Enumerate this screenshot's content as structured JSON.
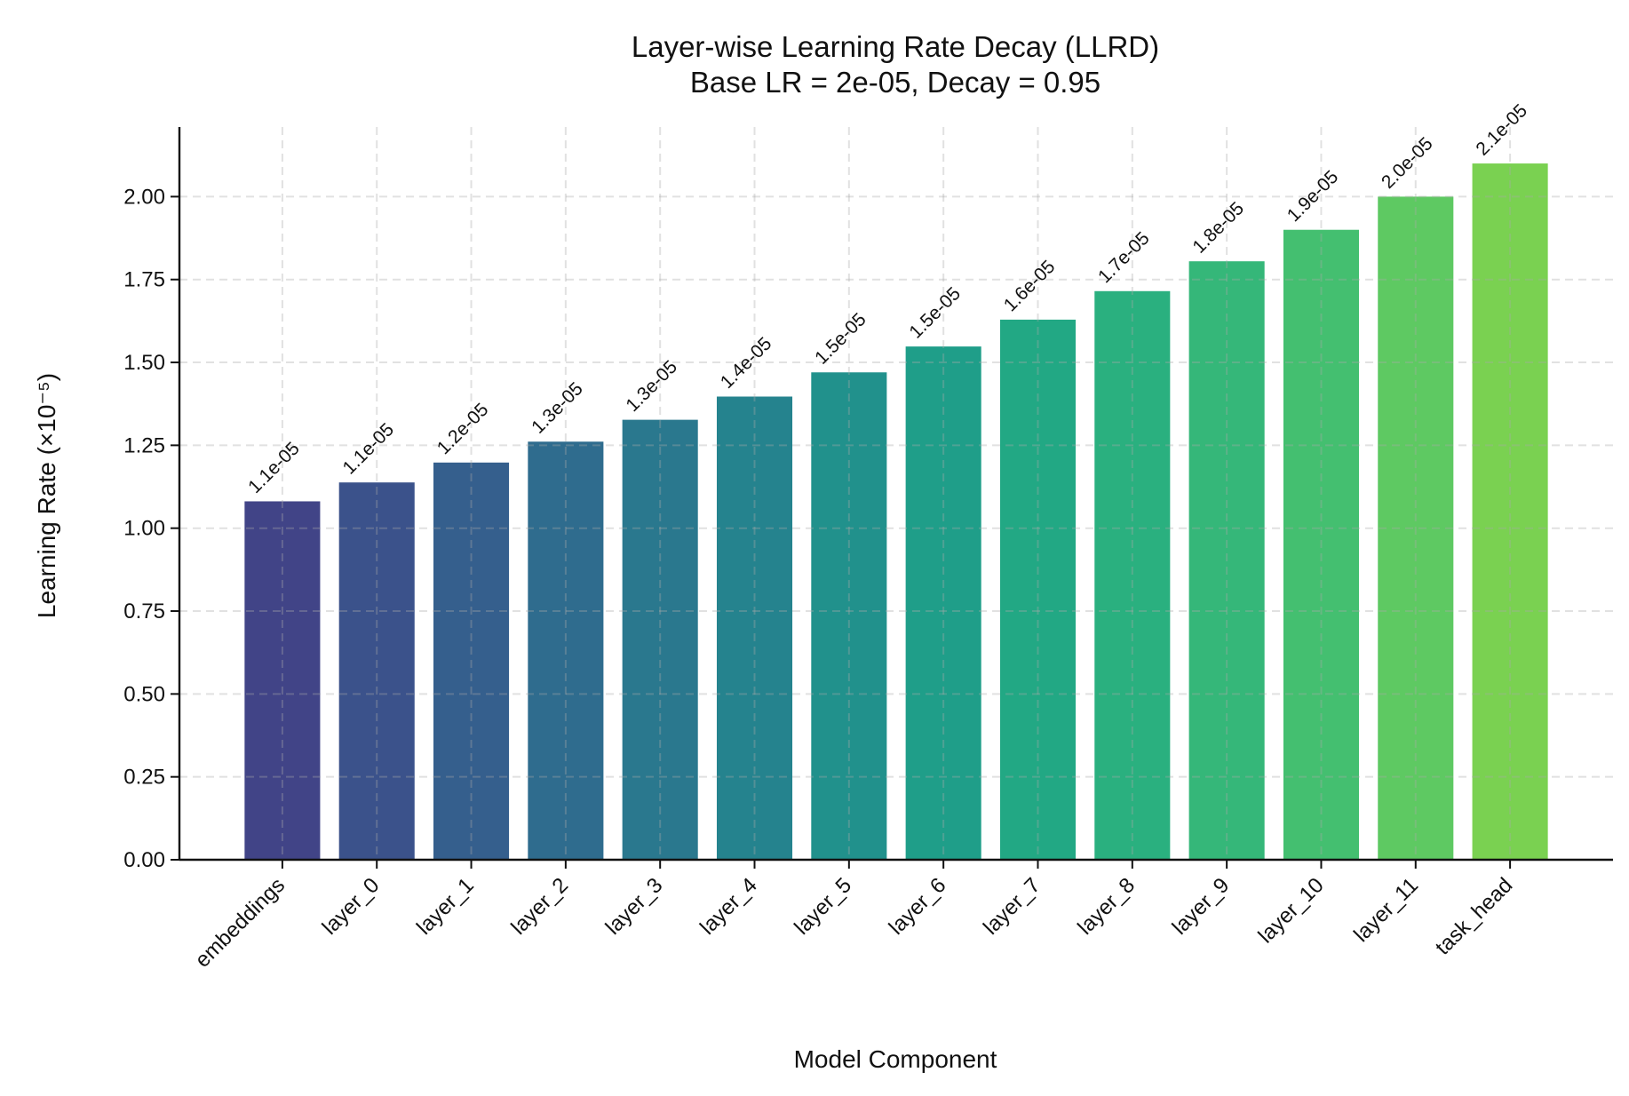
{
  "chart_data": {
    "type": "bar",
    "title": "Layer-wise Learning Rate Decay (LLRD)",
    "subtitle": "Base LR = 2e-05, Decay = 0.95",
    "xlabel": "Model Component",
    "ylabel": "Learning Rate (×10⁻⁵)",
    "categories": [
      "embeddings",
      "layer_0",
      "layer_1",
      "layer_2",
      "layer_3",
      "layer_4",
      "layer_5",
      "layer_6",
      "layer_7",
      "layer_8",
      "layer_9",
      "layer_10",
      "layer_11",
      "task_head"
    ],
    "values": [
      1.081,
      1.138,
      1.198,
      1.261,
      1.327,
      1.397,
      1.47,
      1.548,
      1.629,
      1.715,
      1.805,
      1.9,
      2.0,
      2.1
    ],
    "data_labels": [
      "1.1e-05",
      "1.1e-05",
      "1.2e-05",
      "1.3e-05",
      "1.3e-05",
      "1.4e-05",
      "1.5e-05",
      "1.5e-05",
      "1.6e-05",
      "1.7e-05",
      "1.8e-05",
      "1.9e-05",
      "2.0e-05",
      "2.1e-05"
    ],
    "colors": [
      "#414487",
      "#3b528b",
      "#355f8d",
      "#2f6c8e",
      "#2a788e",
      "#25838e",
      "#21918c",
      "#1f9e89",
      "#22a884",
      "#2ab07f",
      "#35b779",
      "#44bf70",
      "#5ec962",
      "#7ad151"
    ],
    "yticks": [
      "0.00",
      "0.25",
      "0.50",
      "0.75",
      "1.00",
      "1.25",
      "1.50",
      "1.75",
      "2.00"
    ],
    "ylim": [
      0,
      2.21
    ],
    "grid": true,
    "grid_style": "dashed"
  }
}
